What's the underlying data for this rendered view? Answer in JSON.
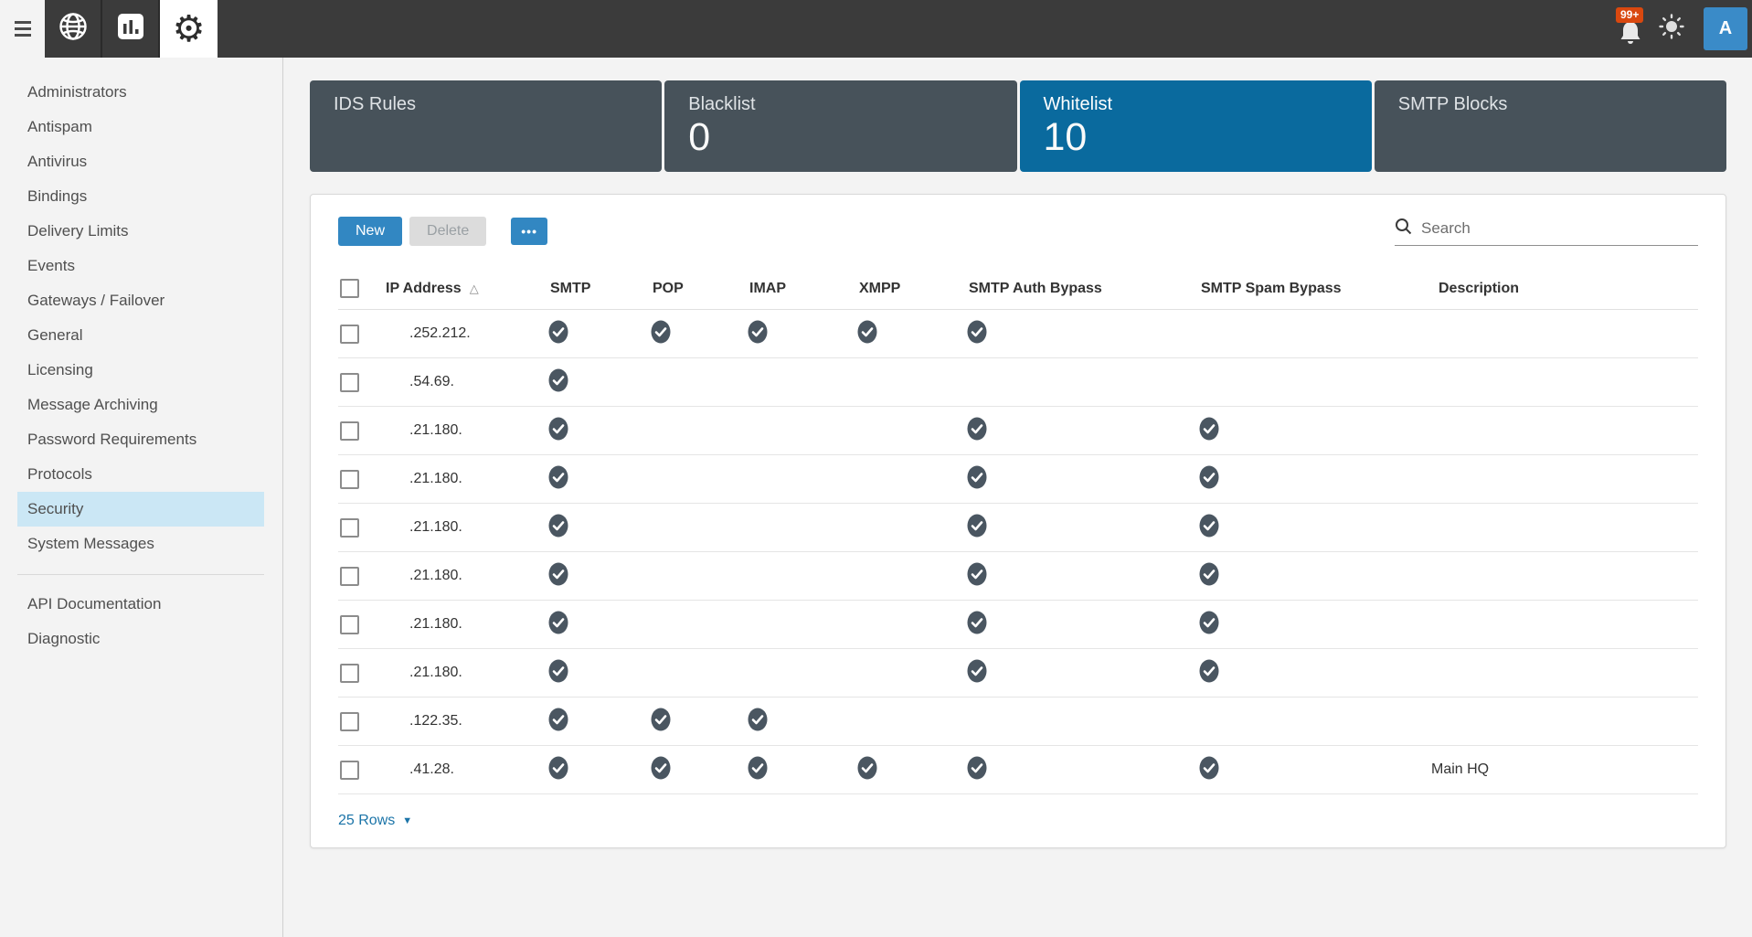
{
  "topbar": {
    "notification_badge": "99+",
    "avatar_letter": "A",
    "icons": {
      "menu": "hamburger-bars",
      "webmail": "globe",
      "reports": "bar-chart",
      "settings": "gear",
      "notifications": "bell",
      "theme": "sun",
      "account": "avatar-letter"
    }
  },
  "sidebar": {
    "items": [
      {
        "label": "Administrators",
        "active": false
      },
      {
        "label": "Antispam",
        "active": false
      },
      {
        "label": "Antivirus",
        "active": false
      },
      {
        "label": "Bindings",
        "active": false
      },
      {
        "label": "Delivery Limits",
        "active": false
      },
      {
        "label": "Events",
        "active": false
      },
      {
        "label": "Gateways / Failover",
        "active": false
      },
      {
        "label": "General",
        "active": false
      },
      {
        "label": "Licensing",
        "active": false
      },
      {
        "label": "Message Archiving",
        "active": false
      },
      {
        "label": "Password Requirements",
        "active": false
      },
      {
        "label": "Protocols",
        "active": false
      },
      {
        "label": "Security",
        "active": true
      },
      {
        "label": "System Messages",
        "active": false
      }
    ],
    "secondary_items": [
      {
        "label": "API Documentation"
      },
      {
        "label": "Diagnostic"
      }
    ]
  },
  "tabs": [
    {
      "label": "IDS Rules",
      "count": "",
      "active": false
    },
    {
      "label": "Blacklist",
      "count": "0",
      "active": false
    },
    {
      "label": "Whitelist",
      "count": "10",
      "active": true
    },
    {
      "label": "SMTP Blocks",
      "count": "",
      "active": false
    }
  ],
  "toolbar": {
    "new_label": "New",
    "delete_label": "Delete",
    "more_label": "•••",
    "search_placeholder": "Search",
    "search_icon": "magnifier"
  },
  "table": {
    "columns": [
      "IP Address",
      "SMTP",
      "POP",
      "IMAP",
      "XMPP",
      "SMTP Auth Bypass",
      "SMTP Spam Bypass",
      "Description"
    ],
    "sort_column": "IP Address",
    "sort_direction": "ascending",
    "check_icon": "check-circle",
    "rows": [
      {
        "ip": ".252.212.",
        "smtp": true,
        "pop": true,
        "imap": true,
        "xmpp": true,
        "auth_bypass": true,
        "spam_bypass": false,
        "description": ""
      },
      {
        "ip": ".54.69.",
        "smtp": true,
        "pop": false,
        "imap": false,
        "xmpp": false,
        "auth_bypass": false,
        "spam_bypass": false,
        "description": ""
      },
      {
        "ip": ".21.180.",
        "smtp": true,
        "pop": false,
        "imap": false,
        "xmpp": false,
        "auth_bypass": true,
        "spam_bypass": true,
        "description": ""
      },
      {
        "ip": ".21.180.",
        "smtp": true,
        "pop": false,
        "imap": false,
        "xmpp": false,
        "auth_bypass": true,
        "spam_bypass": true,
        "description": ""
      },
      {
        "ip": ".21.180.",
        "smtp": true,
        "pop": false,
        "imap": false,
        "xmpp": false,
        "auth_bypass": true,
        "spam_bypass": true,
        "description": ""
      },
      {
        "ip": ".21.180.",
        "smtp": true,
        "pop": false,
        "imap": false,
        "xmpp": false,
        "auth_bypass": true,
        "spam_bypass": true,
        "description": ""
      },
      {
        "ip": ".21.180.",
        "smtp": true,
        "pop": false,
        "imap": false,
        "xmpp": false,
        "auth_bypass": true,
        "spam_bypass": true,
        "description": ""
      },
      {
        "ip": ".21.180.",
        "smtp": true,
        "pop": false,
        "imap": false,
        "xmpp": false,
        "auth_bypass": true,
        "spam_bypass": true,
        "description": ""
      },
      {
        "ip": ".122.35.",
        "smtp": true,
        "pop": true,
        "imap": true,
        "xmpp": false,
        "auth_bypass": false,
        "spam_bypass": false,
        "description": ""
      },
      {
        "ip": ".41.28.",
        "smtp": true,
        "pop": true,
        "imap": true,
        "xmpp": true,
        "auth_bypass": true,
        "spam_bypass": true,
        "description": "Main HQ"
      }
    ]
  },
  "footer": {
    "rows_label": "25 Rows",
    "expand_icon": "caret-down"
  },
  "colors": {
    "topbar_bg": "#3b3b3b",
    "card_bg": "#47525a",
    "card_active_bg": "#0a6a9e",
    "accent_button": "#3287c2",
    "disabled_button": "#dcdcdc",
    "check_circle": "#4a5661",
    "notification_badge": "#d9480f",
    "avatar_bg": "#3a8bc8",
    "sidebar_active_bg": "#cbe7f5",
    "link": "#1b74a8"
  }
}
